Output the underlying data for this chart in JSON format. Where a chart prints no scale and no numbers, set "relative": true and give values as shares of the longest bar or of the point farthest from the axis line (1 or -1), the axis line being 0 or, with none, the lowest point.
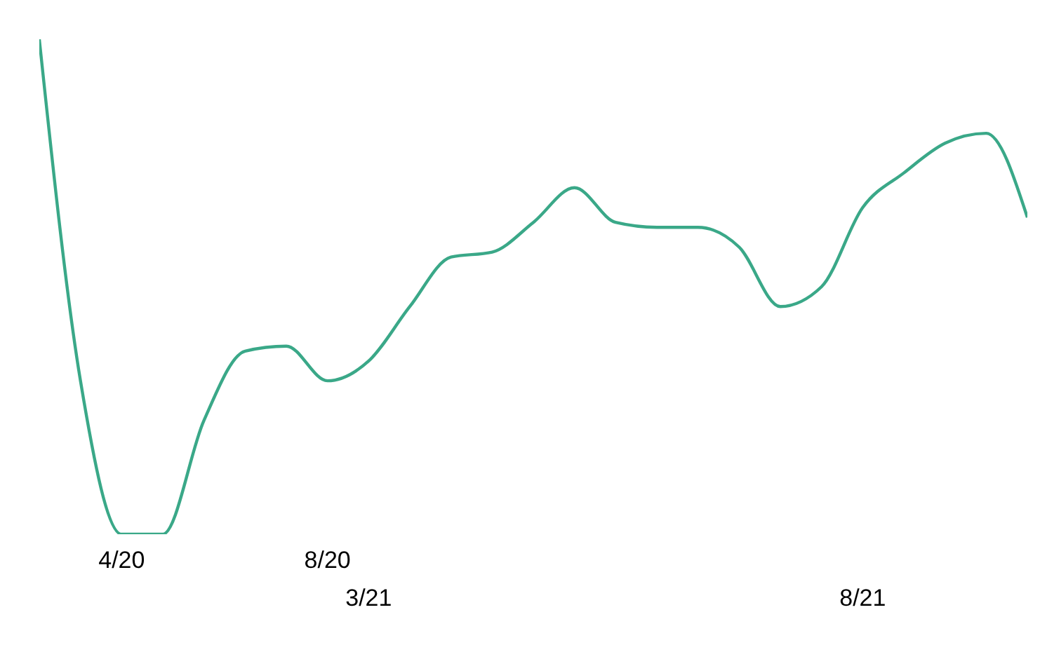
{
  "chart_data": {
    "type": "line",
    "relative": true,
    "line_style": "solid",
    "marker": "none",
    "grid": false,
    "legend": false,
    "categories": [
      null,
      null,
      "4/20",
      null,
      null,
      null,
      null,
      "8/20",
      "3/21",
      null,
      null,
      null,
      null,
      null,
      null,
      null,
      null,
      null,
      null,
      null,
      "8/21",
      null,
      null,
      null,
      null
    ],
    "series": [
      {
        "color": "#3aa888",
        "values": [
          1.0,
          0.31,
          0,
          0,
          0.23,
          0.37,
          0.38,
          0.31,
          0.35,
          0.46,
          0.56,
          0.57,
          0.63,
          0.7,
          0.63,
          0.62,
          0.62,
          0.58,
          0.46,
          0.5,
          0.66,
          0.73,
          0.79,
          0.81,
          0.64
        ]
      }
    ]
  }
}
